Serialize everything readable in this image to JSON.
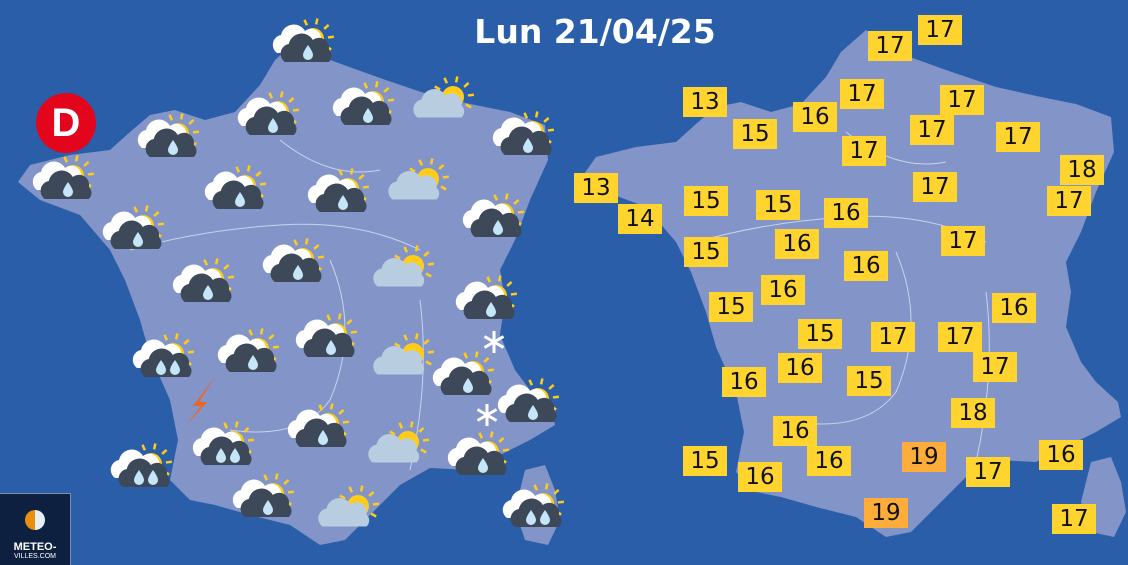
{
  "title": "Lun 21/04/25",
  "badge": "D",
  "logo": {
    "line1": "METEO-",
    "line2": "VILLES.COM"
  },
  "colors": {
    "sea": "#2a5ea8",
    "land": "#8294c8",
    "temp_normal": "#ffd42e",
    "temp_warm": "#ffad3a",
    "rain_cloud": "#3d4858",
    "drop": "#c4e6f8",
    "sun": "#ffcc1a"
  },
  "forecast_icons": [
    "sun-cloud-rain",
    "sun-cloud-rain",
    "sun-cloud-rain",
    "sun-cloud-rain",
    "sun-cloud-rain",
    "sun-cloud",
    "sun-cloud-rain",
    "sun-cloud-rain",
    "sun-cloud-rain",
    "sun-cloud",
    "sun-cloud-rain",
    "sun-cloud-rain",
    "sun-cloud-rain",
    "sun-cloud",
    "sun-cloud-rain",
    "sun-cloud-rain",
    "sun-cloud-heavy-rain",
    "sun-cloud-rain",
    "sun-cloud-rain",
    "sun-cloud",
    "sun-cloud-rain",
    "sun-cloud-rain",
    "sun-cloud-heavy-rain",
    "sun-cloud-rain",
    "sun-cloud",
    "sun-cloud-rain",
    "sun-cloud-heavy-rain",
    "sun-cloud-rain",
    "sun-cloud",
    "sun-cloud-heavy-rain",
    "thunder",
    "snow",
    "snow"
  ],
  "temperatures": [
    17,
    17,
    13,
    15,
    16,
    17,
    17,
    17,
    17,
    17,
    18,
    13,
    14,
    15,
    15,
    16,
    17,
    17,
    15,
    16,
    16,
    17,
    16,
    15,
    16,
    15,
    17,
    17,
    17,
    16,
    16,
    15,
    18,
    16,
    19,
    15,
    16,
    16,
    17,
    16,
    19,
    17
  ],
  "warm_threshold": 19
}
